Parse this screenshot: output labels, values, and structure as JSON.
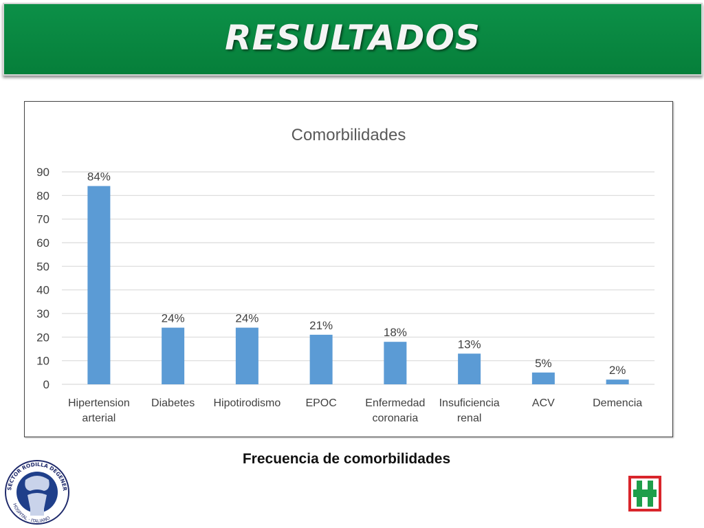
{
  "header": {
    "title": "RESULTADOS"
  },
  "caption": "Frecuencia de comorbilidades",
  "logo": {
    "text": "SECTOR RODILLA DEGENERATIVA · HOSPITAL · ITALIANO"
  },
  "colors": {
    "banner": "#0a8a43",
    "bar": "#5b9bd5",
    "cross": "#1e9e4a",
    "cross_border": "#d9252b"
  },
  "chart_data": {
    "type": "bar",
    "title": "Comorbilidades",
    "categories": [
      "Hipertension arterial",
      "Diabetes",
      "Hipotirodismo",
      "EPOC",
      "Enfermedad coronaria",
      "Insuficiencia renal",
      "ACV",
      "Demencia"
    ],
    "values": [
      84,
      24,
      24,
      21,
      18,
      13,
      5,
      2
    ],
    "data_labels": [
      "84%",
      "24%",
      "24%",
      "21%",
      "18%",
      "13%",
      "5%",
      "2%"
    ],
    "yticks": [
      0,
      10,
      20,
      30,
      40,
      50,
      60,
      70,
      80,
      90
    ],
    "ylim": [
      0,
      90
    ],
    "xlabel": "",
    "ylabel": "",
    "grid": true,
    "legend": "none"
  }
}
